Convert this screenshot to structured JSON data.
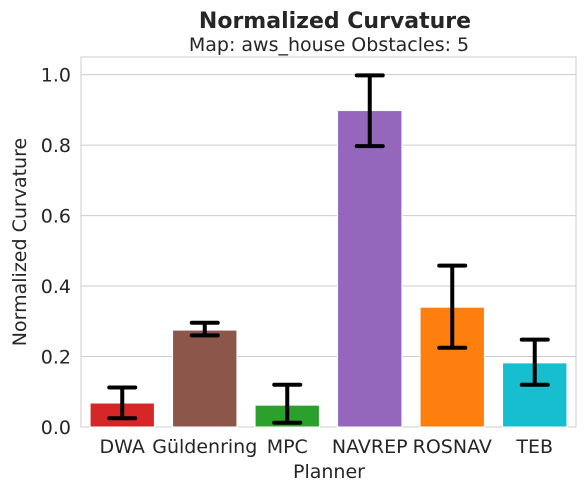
{
  "chart_data": {
    "type": "bar",
    "title": "Normalized Curvature",
    "subtitle": "Map: aws_house Obstacles: 5",
    "xlabel": "Planner",
    "ylabel": "Normalized Curvature",
    "categories": [
      "DWA",
      "Güldenring",
      "MPC",
      "NAVREP",
      "ROSNAV",
      "TEB"
    ],
    "values": [
      0.068,
      0.275,
      0.062,
      0.898,
      0.34,
      0.182
    ],
    "error_low": [
      0.025,
      0.26,
      0.012,
      0.797,
      0.225,
      0.12
    ],
    "error_high": [
      0.112,
      0.296,
      0.12,
      0.998,
      0.458,
      0.248
    ],
    "colors": [
      "#d62728",
      "#8c564b",
      "#2ca02c",
      "#9467bd",
      "#ff7f0e",
      "#17becf"
    ],
    "ylim": [
      0,
      1.05
    ],
    "yticks": [
      0.0,
      0.2,
      0.4,
      0.6,
      0.8,
      1.0
    ],
    "ytick_labels": [
      "0.0",
      "0.2",
      "0.4",
      "0.6",
      "0.8",
      "1.0"
    ],
    "grid": "horizontal",
    "legend": "none"
  }
}
